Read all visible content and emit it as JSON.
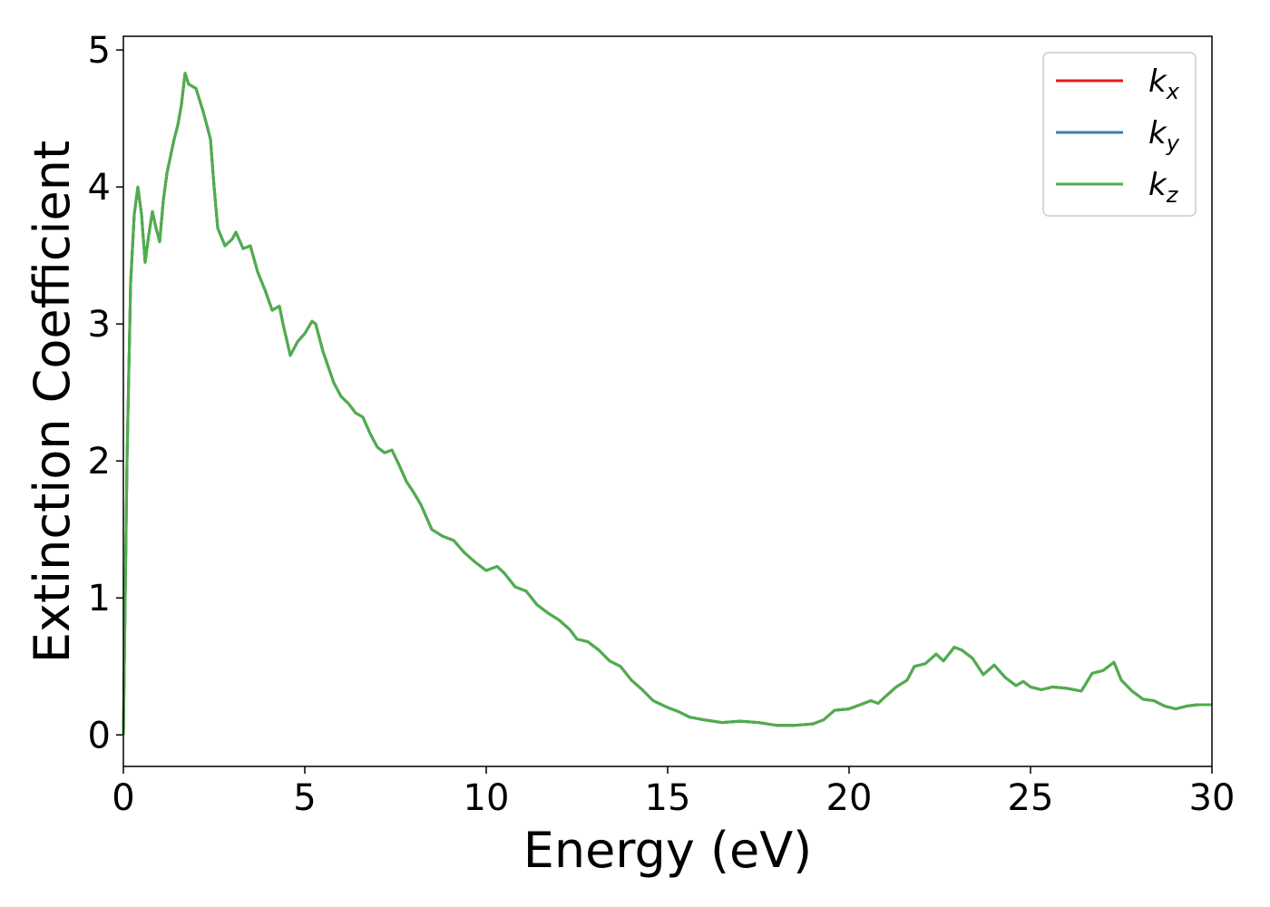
{
  "chart_data": {
    "type": "line",
    "xlabel": "Energy (eV)",
    "ylabel": "Extinction Coefficient",
    "xlim": [
      0,
      30
    ],
    "xticks": [
      0,
      5,
      10,
      15,
      20,
      25,
      30
    ],
    "ylim": [
      -0.23,
      5.1
    ],
    "yticks": [
      0,
      1,
      2,
      3,
      4,
      5
    ],
    "legend": "upper right",
    "x": [
      0,
      0.1,
      0.2,
      0.3,
      0.4,
      0.5,
      0.6,
      0.7,
      0.8,
      0.9,
      1.0,
      1.1,
      1.2,
      1.4,
      1.5,
      1.6,
      1.7,
      1.8,
      2.0,
      2.2,
      2.4,
      2.5,
      2.6,
      2.8,
      3.0,
      3.1,
      3.3,
      3.5,
      3.7,
      3.9,
      4.1,
      4.3,
      4.4,
      4.6,
      4.8,
      5.0,
      5.2,
      5.3,
      5.5,
      5.8,
      6.0,
      6.2,
      6.4,
      6.6,
      6.8,
      7.0,
      7.2,
      7.4,
      7.6,
      7.8,
      8.0,
      8.2,
      8.5,
      8.8,
      9.1,
      9.4,
      9.7,
      10.0,
      10.3,
      10.5,
      10.8,
      11.1,
      11.4,
      11.7,
      12.0,
      12.3,
      12.5,
      12.8,
      13.1,
      13.4,
      13.7,
      14.0,
      14.3,
      14.6,
      15.0,
      15.3,
      15.6,
      16.0,
      16.5,
      17.0,
      17.5,
      18.0,
      18.5,
      19.0,
      19.3,
      19.6,
      20.0,
      20.3,
      20.6,
      20.8,
      21.0,
      21.3,
      21.6,
      21.8,
      22.1,
      22.4,
      22.6,
      22.9,
      23.1,
      23.4,
      23.7,
      24.0,
      24.3,
      24.6,
      24.8,
      25.0,
      25.3,
      25.6,
      26.0,
      26.4,
      26.7,
      27.0,
      27.3,
      27.5,
      27.8,
      28.1,
      28.4,
      28.7,
      29.0,
      29.3,
      29.6,
      30.0
    ],
    "series": [
      {
        "name": "kx",
        "color": "#e41a1c",
        "values": [
          0,
          2.0,
          3.3,
          3.8,
          4.0,
          3.8,
          3.45,
          3.65,
          3.82,
          3.7,
          3.6,
          3.9,
          4.1,
          4.35,
          4.45,
          4.6,
          4.83,
          4.75,
          4.72,
          4.55,
          4.35,
          4.0,
          3.7,
          3.57,
          3.62,
          3.67,
          3.55,
          3.57,
          3.38,
          3.25,
          3.1,
          3.13,
          3.0,
          2.77,
          2.87,
          2.93,
          3.02,
          3.0,
          2.8,
          2.57,
          2.47,
          2.42,
          2.35,
          2.32,
          2.2,
          2.1,
          2.06,
          2.08,
          1.97,
          1.85,
          1.77,
          1.68,
          1.5,
          1.45,
          1.42,
          1.33,
          1.26,
          1.2,
          1.23,
          1.18,
          1.08,
          1.05,
          0.95,
          0.89,
          0.84,
          0.77,
          0.7,
          0.68,
          0.62,
          0.54,
          0.5,
          0.4,
          0.33,
          0.25,
          0.2,
          0.17,
          0.13,
          0.11,
          0.09,
          0.1,
          0.09,
          0.07,
          0.07,
          0.08,
          0.11,
          0.18,
          0.19,
          0.22,
          0.25,
          0.23,
          0.28,
          0.35,
          0.4,
          0.5,
          0.52,
          0.59,
          0.54,
          0.64,
          0.62,
          0.56,
          0.44,
          0.51,
          0.42,
          0.36,
          0.39,
          0.35,
          0.33,
          0.35,
          0.34,
          0.32,
          0.45,
          0.47,
          0.53,
          0.4,
          0.32,
          0.26,
          0.25,
          0.21,
          0.19,
          0.21,
          0.22,
          0.22
        ]
      },
      {
        "name": "ky",
        "color": "#377eb8",
        "values": [
          0,
          2.0,
          3.3,
          3.8,
          4.0,
          3.8,
          3.45,
          3.65,
          3.82,
          3.7,
          3.6,
          3.9,
          4.1,
          4.35,
          4.45,
          4.6,
          4.83,
          4.75,
          4.72,
          4.55,
          4.35,
          4.0,
          3.7,
          3.57,
          3.62,
          3.67,
          3.55,
          3.57,
          3.38,
          3.25,
          3.1,
          3.13,
          3.0,
          2.77,
          2.87,
          2.93,
          3.02,
          3.0,
          2.8,
          2.57,
          2.47,
          2.42,
          2.35,
          2.32,
          2.2,
          2.1,
          2.06,
          2.08,
          1.97,
          1.85,
          1.77,
          1.68,
          1.5,
          1.45,
          1.42,
          1.33,
          1.26,
          1.2,
          1.23,
          1.18,
          1.08,
          1.05,
          0.95,
          0.89,
          0.84,
          0.77,
          0.7,
          0.68,
          0.62,
          0.54,
          0.5,
          0.4,
          0.33,
          0.25,
          0.2,
          0.17,
          0.13,
          0.11,
          0.09,
          0.1,
          0.09,
          0.07,
          0.07,
          0.08,
          0.11,
          0.18,
          0.19,
          0.22,
          0.25,
          0.23,
          0.28,
          0.35,
          0.4,
          0.5,
          0.52,
          0.59,
          0.54,
          0.64,
          0.62,
          0.56,
          0.44,
          0.51,
          0.42,
          0.36,
          0.39,
          0.35,
          0.33,
          0.35,
          0.34,
          0.32,
          0.45,
          0.47,
          0.53,
          0.4,
          0.32,
          0.26,
          0.25,
          0.21,
          0.19,
          0.21,
          0.22,
          0.22
        ]
      },
      {
        "name": "kz",
        "color": "#4daf4a",
        "values": [
          0,
          2.0,
          3.3,
          3.8,
          4.0,
          3.8,
          3.45,
          3.65,
          3.82,
          3.7,
          3.6,
          3.9,
          4.1,
          4.35,
          4.45,
          4.6,
          4.83,
          4.75,
          4.72,
          4.55,
          4.35,
          4.0,
          3.7,
          3.57,
          3.62,
          3.67,
          3.55,
          3.57,
          3.38,
          3.25,
          3.1,
          3.13,
          3.0,
          2.77,
          2.87,
          2.93,
          3.02,
          3.0,
          2.8,
          2.57,
          2.47,
          2.42,
          2.35,
          2.32,
          2.2,
          2.1,
          2.06,
          2.08,
          1.97,
          1.85,
          1.77,
          1.68,
          1.5,
          1.45,
          1.42,
          1.33,
          1.26,
          1.2,
          1.23,
          1.18,
          1.08,
          1.05,
          0.95,
          0.89,
          0.84,
          0.77,
          0.7,
          0.68,
          0.62,
          0.54,
          0.5,
          0.4,
          0.33,
          0.25,
          0.2,
          0.17,
          0.13,
          0.11,
          0.09,
          0.1,
          0.09,
          0.07,
          0.07,
          0.08,
          0.11,
          0.18,
          0.19,
          0.22,
          0.25,
          0.23,
          0.28,
          0.35,
          0.4,
          0.5,
          0.52,
          0.59,
          0.54,
          0.64,
          0.62,
          0.56,
          0.44,
          0.51,
          0.42,
          0.36,
          0.39,
          0.35,
          0.33,
          0.35,
          0.34,
          0.32,
          0.45,
          0.47,
          0.53,
          0.4,
          0.32,
          0.26,
          0.25,
          0.21,
          0.19,
          0.21,
          0.22,
          0.22
        ]
      }
    ]
  }
}
